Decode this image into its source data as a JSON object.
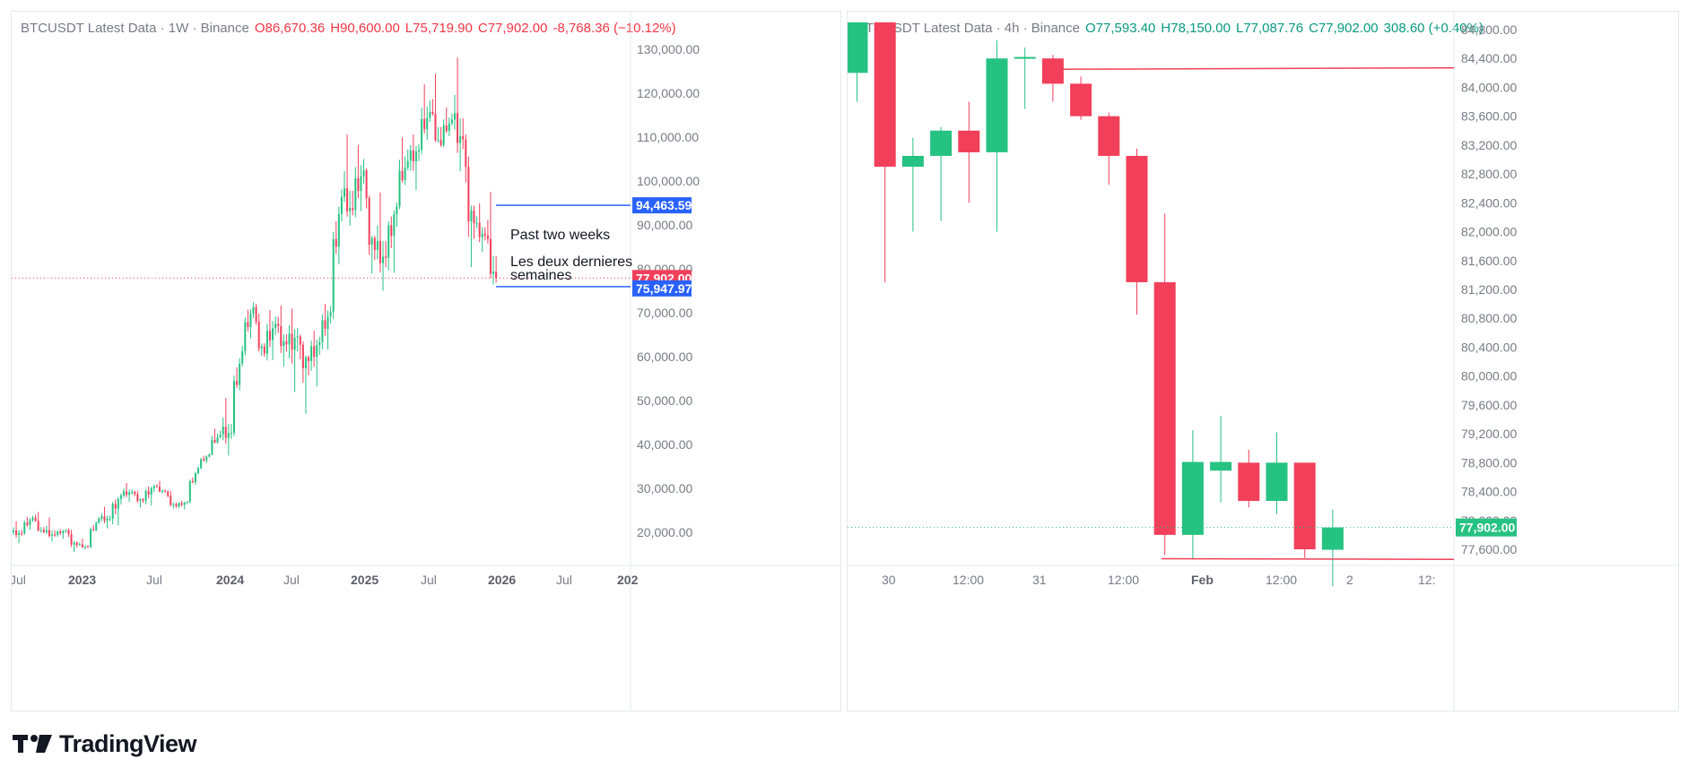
{
  "brand": {
    "name": "TradingView"
  },
  "left_chart": {
    "header": {
      "symbol_text": "BTCUSDT Latest Data · 1W · Binance",
      "open": "O86,670.36",
      "high": "H90,600.00",
      "low": "L75,719.90",
      "close": "C77,902.00",
      "change": "-8,768.36 (−10.12%)"
    },
    "price_labels": [
      "130,000.00",
      "120,000.00",
      "110,000.00",
      "100,000.00",
      "90,000.00",
      "80,000.00",
      "70,000.00",
      "60,000.00",
      "50,000.00",
      "40,000.00",
      "30,000.00",
      "20,000.00"
    ],
    "time_labels": [
      {
        "text": "Jul",
        "bold": false
      },
      {
        "text": "2023",
        "bold": true
      },
      {
        "text": "Jul",
        "bold": false
      },
      {
        "text": "2024",
        "bold": true
      },
      {
        "text": "Jul",
        "bold": false
      },
      {
        "text": "2025",
        "bold": true
      },
      {
        "text": "Jul",
        "bold": false
      },
      {
        "text": "2026",
        "bold": true
      },
      {
        "text": "Jul",
        "bold": false
      },
      {
        "text": "202",
        "bold": true
      }
    ],
    "tags": {
      "upper": "94,463.59",
      "last": "77,902.00",
      "lower": "75,947.97"
    },
    "annotations": {
      "en": "Past two weeks",
      "fr_line1": "Les deux dernieres",
      "fr_line2": "semaines"
    }
  },
  "right_chart": {
    "header": {
      "symbol_text": "BTCUSDT Latest Data · 4h · Binance",
      "open": "O77,593.40",
      "high": "H78,150.00",
      "low": "L77,087.76",
      "close": "C77,902.00",
      "change": "308.60 (+0.40%)"
    },
    "price_labels": [
      "84,800.00",
      "84,400.00",
      "84,000.00",
      "83,600.00",
      "83,200.00",
      "82,800.00",
      "82,400.00",
      "82,000.00",
      "81,600.00",
      "81,200.00",
      "80,800.00",
      "80,400.00",
      "80,000.00",
      "79,600.00",
      "79,200.00",
      "78,800.00",
      "78,400.00",
      "78,000.00",
      "77,600.00"
    ],
    "time_labels": [
      {
        "text": "30",
        "bold": false
      },
      {
        "text": "12:00",
        "bold": false
      },
      {
        "text": "31",
        "bold": false
      },
      {
        "text": "12:00",
        "bold": false
      },
      {
        "text": "Feb",
        "bold": true
      },
      {
        "text": "12:00",
        "bold": false
      },
      {
        "text": "2",
        "bold": false
      },
      {
        "text": "12:",
        "bold": false
      }
    ],
    "tags": {
      "last": "77,902.00"
    }
  },
  "colors": {
    "up": "#26c281",
    "down": "#f23f5a",
    "blue": "#2962ff",
    "grid": "#f0f3fa"
  },
  "chart_data": [
    {
      "type": "candlestick",
      "title": "BTCUSDT Latest Data · 1W · Binance",
      "interval": "1W",
      "ylim": [
        15000,
        135000
      ],
      "x_range": [
        "2022-06",
        "2026-07"
      ],
      "legend": "none",
      "grid": false,
      "horizontal_levels": [
        94463.59,
        75947.97
      ],
      "last_price": 77902.0,
      "ohlc_monthly_approx": [
        [
          "2022-06",
          20000,
          22000,
          18000,
          19800
        ],
        [
          "2022-07",
          19800,
          24500,
          18800,
          23300
        ],
        [
          "2022-08",
          23300,
          25200,
          19600,
          20000
        ],
        [
          "2022-09",
          20000,
          22800,
          18200,
          19400
        ],
        [
          "2022-10",
          19400,
          21000,
          18200,
          20500
        ],
        [
          "2022-11",
          20500,
          21400,
          15500,
          17100
        ],
        [
          "2022-12",
          17100,
          18400,
          16200,
          16600
        ],
        [
          "2023-01",
          16600,
          23900,
          16500,
          23100
        ],
        [
          "2023-02",
          23100,
          25200,
          21400,
          23100
        ],
        [
          "2023-03",
          23100,
          29200,
          19500,
          28400
        ],
        [
          "2023-04",
          28400,
          31000,
          26900,
          29200
        ],
        [
          "2023-05",
          29200,
          29900,
          25800,
          27200
        ],
        [
          "2023-06",
          27200,
          31400,
          24800,
          30500
        ],
        [
          "2023-07",
          30500,
          31800,
          28800,
          29200
        ],
        [
          "2023-08",
          29200,
          30200,
          25200,
          25900
        ],
        [
          "2023-09",
          25900,
          27400,
          24900,
          26900
        ],
        [
          "2023-10",
          26900,
          35200,
          26500,
          34600
        ],
        [
          "2023-11",
          34600,
          38400,
          34100,
          37700
        ],
        [
          "2023-12",
          37700,
          44700,
          37600,
          42300
        ],
        [
          "2024-01",
          42300,
          48900,
          38500,
          42600
        ],
        [
          "2024-02",
          42600,
          63900,
          41800,
          61200
        ],
        [
          "2024-03",
          61200,
          73800,
          59000,
          71300
        ],
        [
          "2024-04",
          71300,
          72800,
          59200,
          60700
        ],
        [
          "2024-05",
          60700,
          71900,
          56500,
          67500
        ],
        [
          "2024-06",
          67500,
          71900,
          58400,
          62800
        ],
        [
          "2024-07",
          62800,
          70000,
          53500,
          64600
        ],
        [
          "2024-08",
          64600,
          65000,
          49000,
          59000
        ],
        [
          "2024-09",
          59000,
          66500,
          52500,
          63300
        ],
        [
          "2024-10",
          63300,
          73600,
          58900,
          70200
        ],
        [
          "2024-11",
          70200,
          99800,
          66800,
          96400
        ],
        [
          "2024-12",
          96400,
          108300,
          90500,
          93400
        ],
        [
          "2025-01",
          93400,
          109600,
          89200,
          102400
        ],
        [
          "2025-02",
          102400,
          102500,
          78200,
          84300
        ],
        [
          "2025-03",
          84300,
          95000,
          76600,
          82500
        ],
        [
          "2025-04",
          82500,
          95800,
          74500,
          94200
        ],
        [
          "2025-05",
          94200,
          111900,
          93400,
          104600
        ],
        [
          "2025-06",
          104600,
          110500,
          98200,
          107100
        ],
        [
          "2025-07",
          107100,
          123200,
          105100,
          115700
        ],
        [
          "2025-08",
          115700,
          124500,
          108000,
          108200
        ],
        [
          "2025-09",
          108200,
          117900,
          107200,
          114000
        ],
        [
          "2025-10",
          114000,
          126200,
          103500,
          109500
        ],
        [
          "2025-11",
          109500,
          111200,
          80600,
          90400
        ],
        [
          "2025-12",
          90400,
          94600,
          84400,
          87600
        ],
        [
          "2026-01",
          87600,
          97900,
          75900,
          77900
        ]
      ]
    },
    {
      "type": "candlestick",
      "title": "BTCUSDT Latest Data · 4h · Binance",
      "interval": "4h",
      "ylim": [
        77400,
        85000
      ],
      "legend": "none",
      "grid": false,
      "horizontal_levels": [
        84250,
        77450
      ],
      "last_price": 77902.0,
      "ohlc": [
        [
          "Jan 29 20:00",
          84200,
          84900,
          83800,
          84900
        ],
        [
          "Jan 30 00:00",
          84900,
          84900,
          81300,
          82900
        ],
        [
          "Jan 30 04:00",
          82900,
          83300,
          82000,
          83050
        ],
        [
          "Jan 30 08:00",
          83050,
          83450,
          82150,
          83400
        ],
        [
          "Jan 30 12:00",
          83400,
          83800,
          82400,
          83100
        ],
        [
          "Jan 30 16:00",
          83100,
          84650,
          82000,
          84400
        ],
        [
          "Jan 30 20:00",
          84400,
          84550,
          83700,
          84420
        ],
        [
          "Jan 31 00:00",
          84400,
          84450,
          83800,
          84050
        ],
        [
          "Jan 31 04:00",
          84050,
          84150,
          83550,
          83600
        ],
        [
          "Jan 31 08:00",
          83600,
          83650,
          82650,
          83050
        ],
        [
          "Jan 31 12:00",
          83050,
          83150,
          80850,
          81300
        ],
        [
          "Jan 31 16:00",
          81300,
          82250,
          77520,
          77800
        ],
        [
          "Jan 31 20:00",
          77800,
          79250,
          77460,
          78810
        ],
        [
          "Feb 1 00:00",
          78690,
          79450,
          78250,
          78810
        ],
        [
          "Feb 1 04:00",
          78800,
          78980,
          78180,
          78270
        ],
        [
          "Feb 1 08:00",
          78270,
          79220,
          78090,
          78800
        ],
        [
          "Feb 1 12:00",
          78800,
          78800,
          77480,
          77600
        ],
        [
          "Feb 1 16:00",
          77593.4,
          78150,
          77087.76,
          77902.0
        ]
      ]
    }
  ]
}
